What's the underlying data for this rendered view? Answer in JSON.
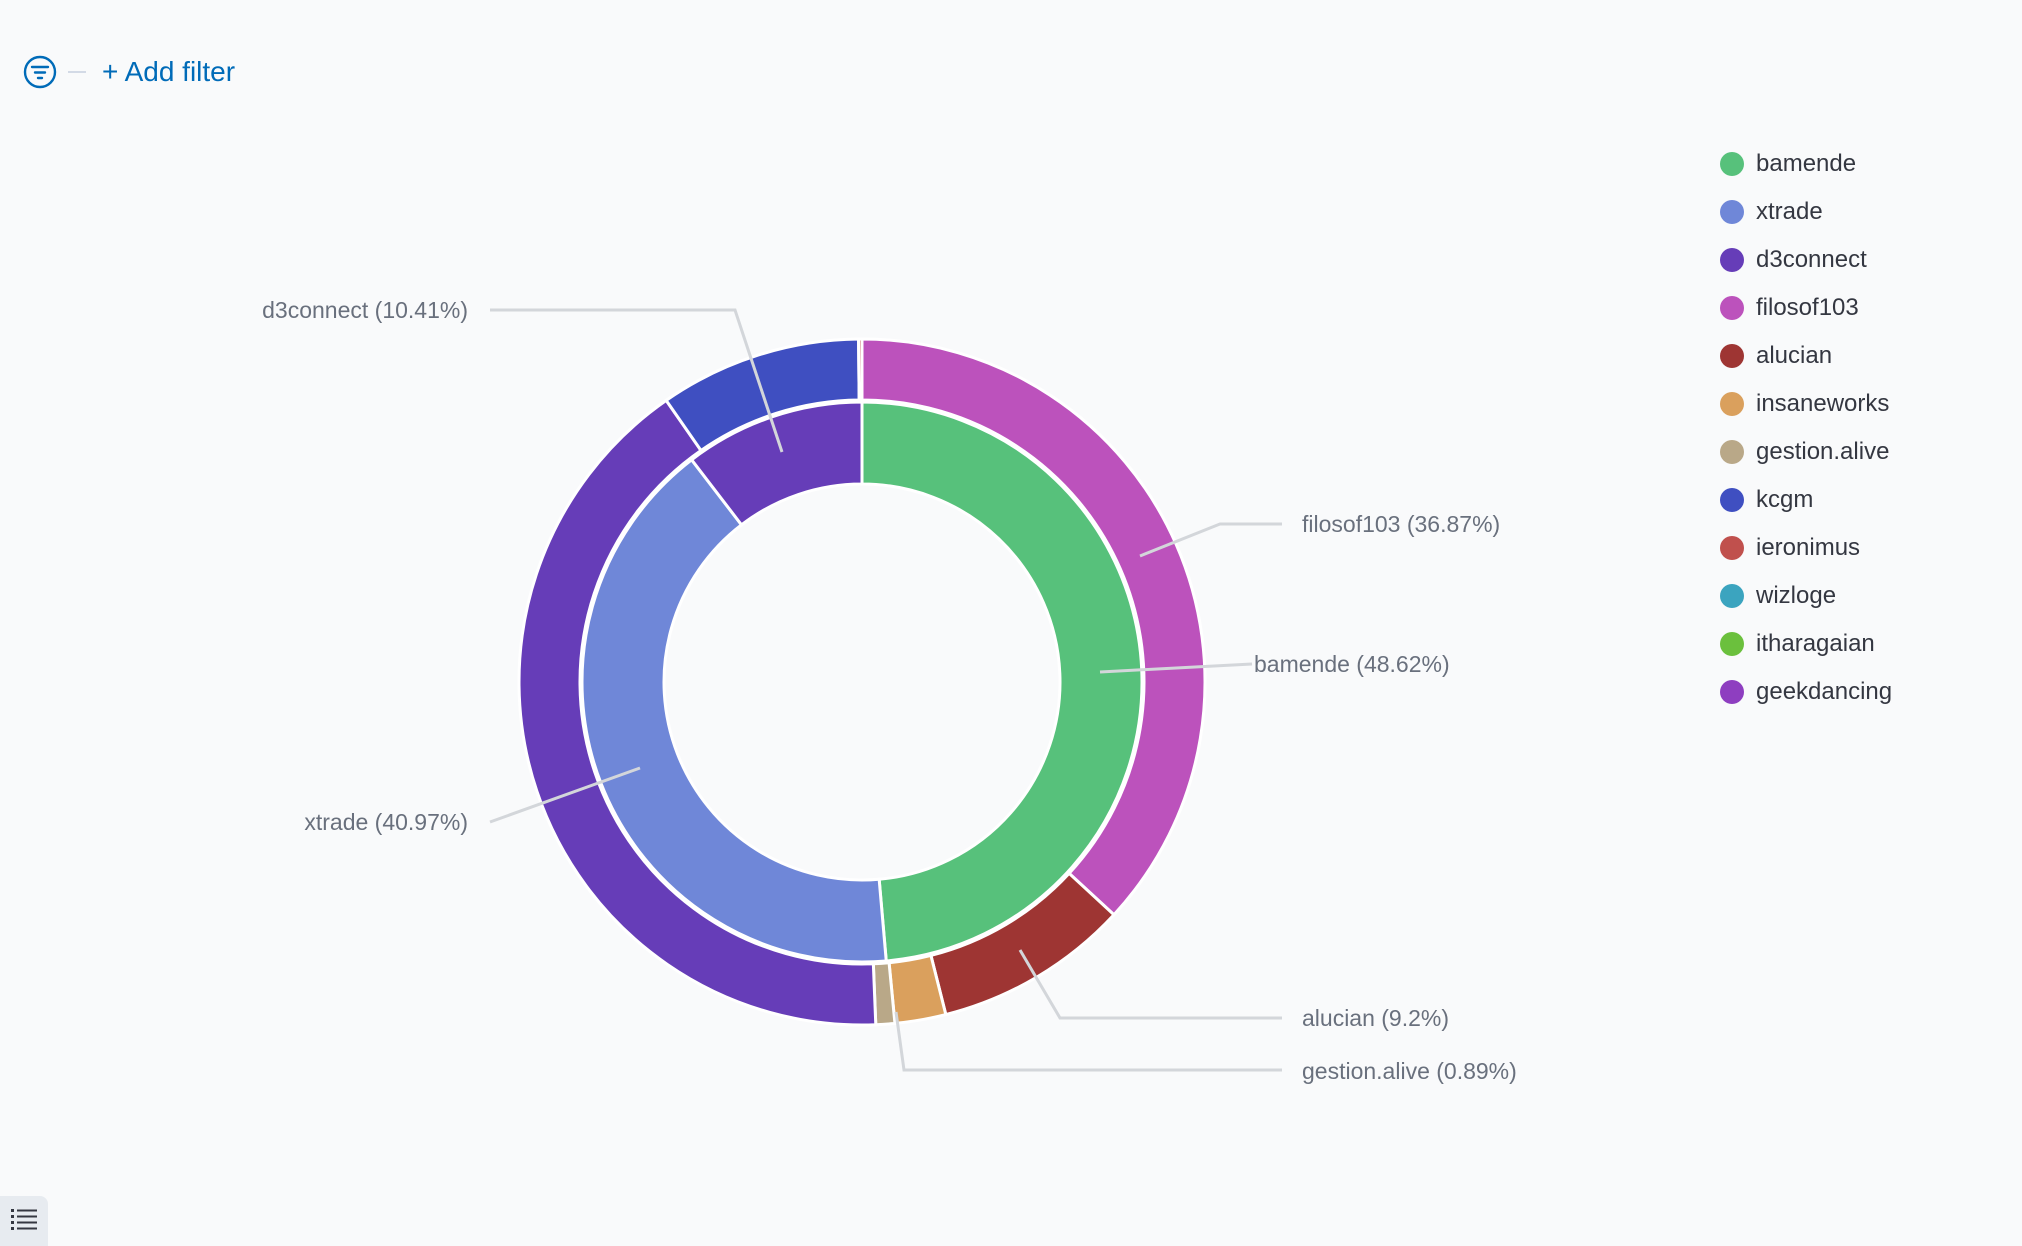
{
  "filter_bar": {
    "add_filter_label": "+ Add filter",
    "filter_icon": "filter-icon"
  },
  "legend_toggle_icon": "list-icon",
  "colors": {
    "bamende": "#57c17b",
    "xtrade": "#6f87d8",
    "d3connect": "#663db8",
    "filosof103": "#bc52bc",
    "alucian": "#9e3533",
    "insaneworks": "#daa05d",
    "gestion.alive": "#b9a888",
    "kcgm": "#3f4fc1",
    "ieronimus": "#c0504d",
    "wizloge": "#3ba4bf",
    "itharagaian": "#6bc03d",
    "geekdancing": "#8e3ec0"
  },
  "chart_data": {
    "type": "pie",
    "style": "nested-donut",
    "inner_ring": {
      "name": "inner",
      "categories": [
        "bamende",
        "xtrade",
        "d3connect"
      ],
      "values": [
        48.62,
        40.97,
        10.41
      ]
    },
    "outer_ring": {
      "name": "outer",
      "categories": [
        "filosof103",
        "alucian",
        "insaneworks",
        "gestion.alive",
        "d3connect",
        "kcgm",
        "ieronimus"
      ],
      "values": [
        36.87,
        9.2,
        2.4,
        0.89,
        40.97,
        9.51,
        0.16
      ]
    },
    "labels": [
      {
        "text": "d3connect (10.41%)",
        "side": "left"
      },
      {
        "text": "filosof103 (36.87%)",
        "side": "right"
      },
      {
        "text": "bamende (48.62%)",
        "side": "right"
      },
      {
        "text": "xtrade (40.97%)",
        "side": "left"
      },
      {
        "text": "alucian (9.2%)",
        "side": "right"
      },
      {
        "text": "gestion.alive (0.89%)",
        "side": "right"
      }
    ],
    "legend": {
      "position": "top-right",
      "items": [
        "bamende",
        "xtrade",
        "d3connect",
        "filosof103",
        "alucian",
        "insaneworks",
        "gestion.alive",
        "kcgm",
        "ieronimus",
        "wizloge",
        "itharagaian",
        "geekdancing"
      ]
    }
  }
}
